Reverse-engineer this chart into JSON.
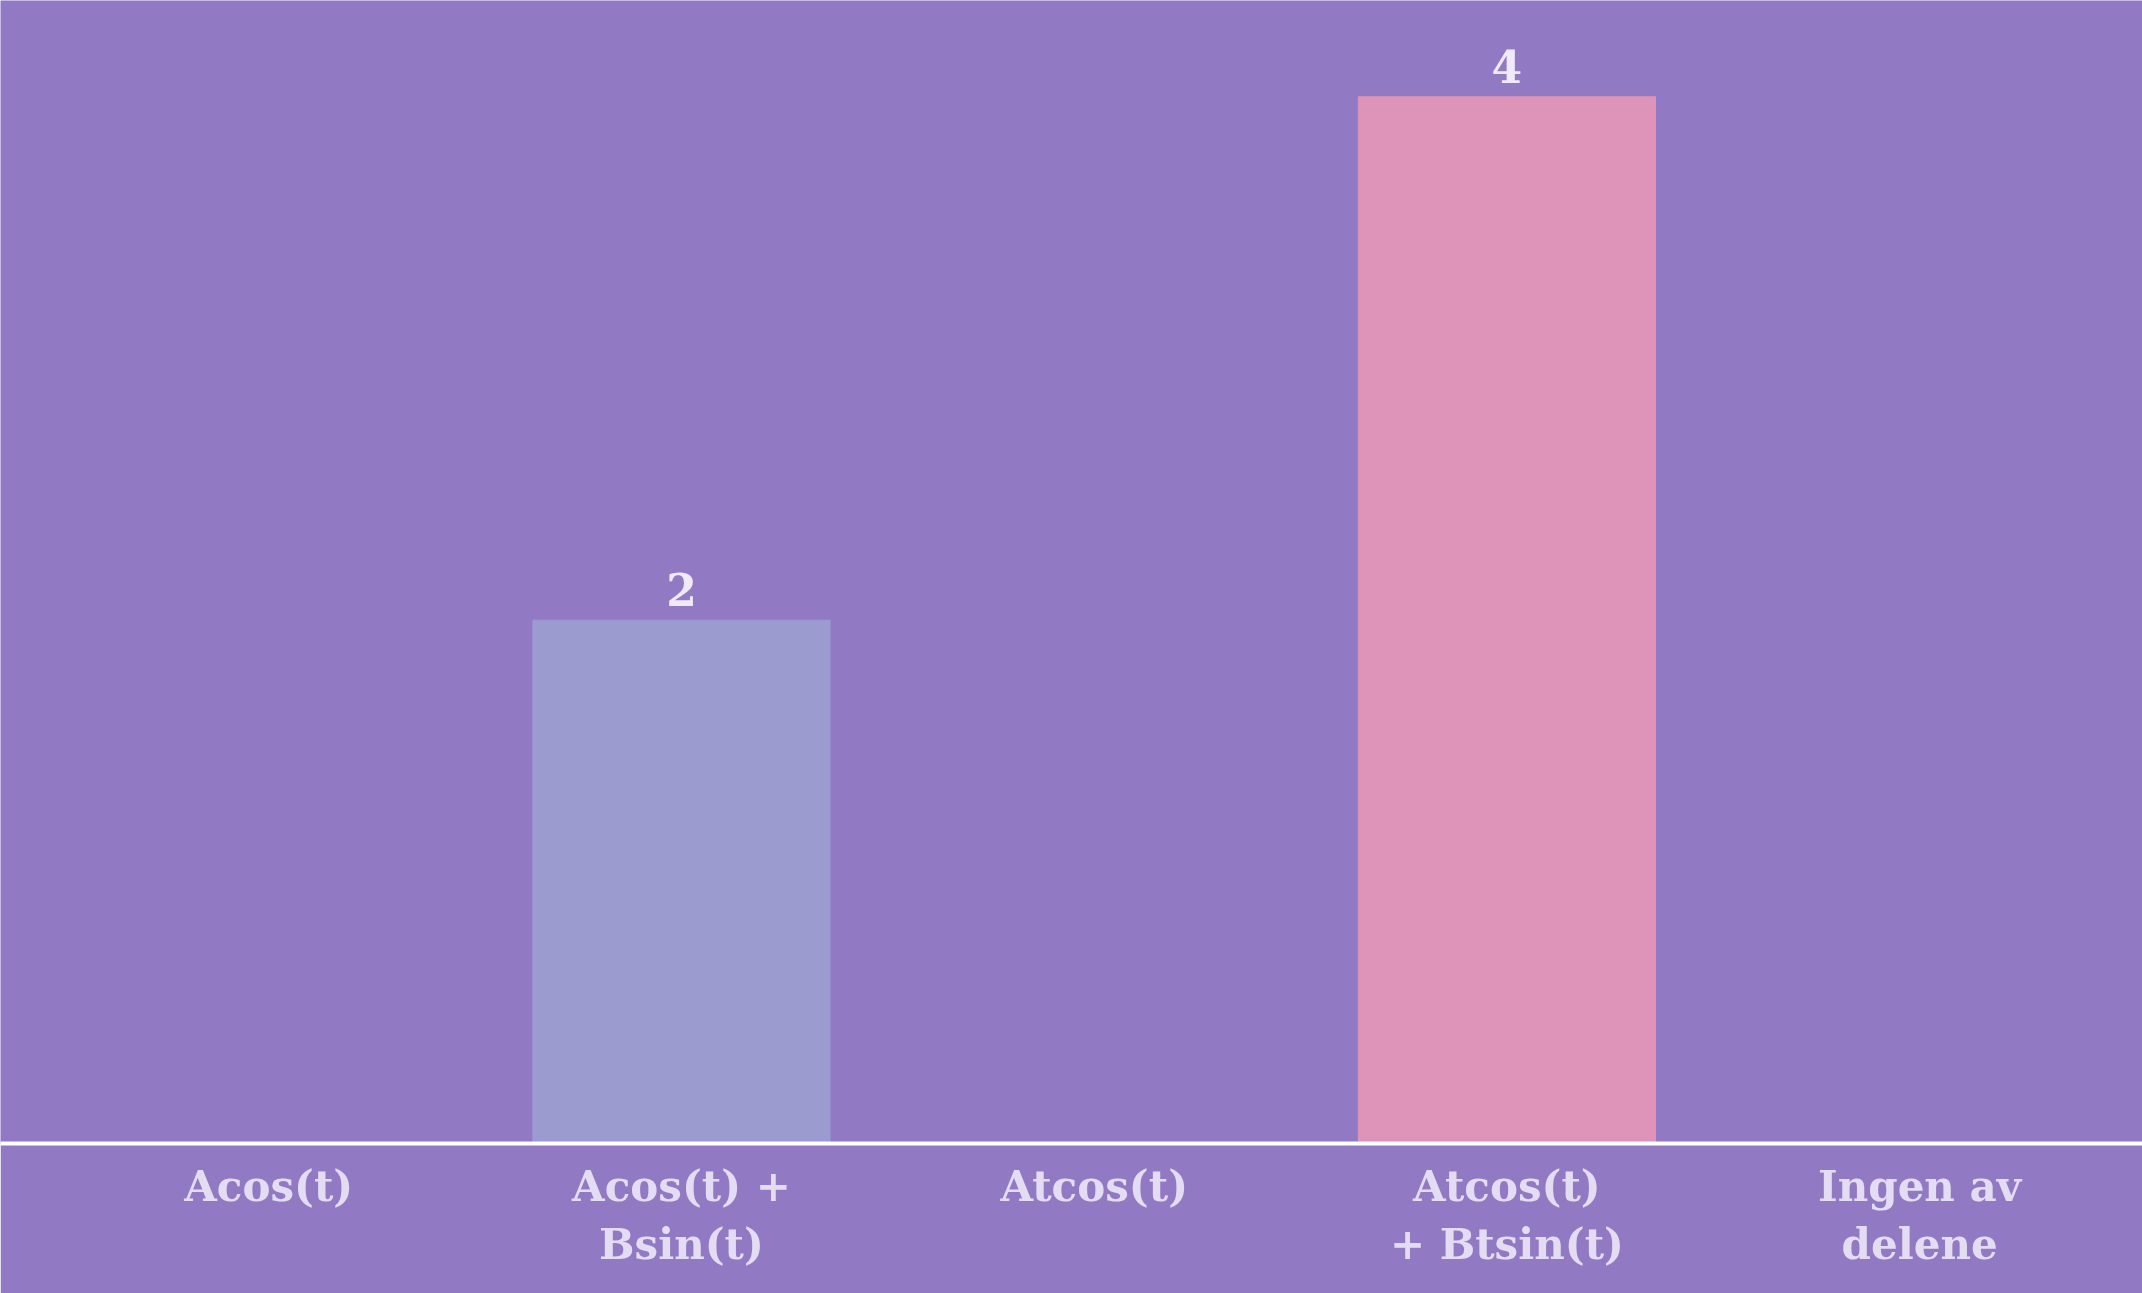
{
  "chart_data": {
    "type": "bar",
    "categories": [
      "Acos(t)",
      "Acos(t) +\nBsin(t)",
      "Atcos(t)",
      "Atcos(t)\n+ Btsin(t)",
      "Ingen av\ndelene"
    ],
    "values": [
      0,
      2,
      0,
      4,
      0
    ],
    "colors": [
      "#9b9bd0",
      "#9b9bd0",
      "#9b9bd0",
      "#de94b9",
      "#9b9bd0"
    ],
    "value_labels": [
      null,
      "2",
      null,
      "4",
      null
    ],
    "grid": false
  }
}
